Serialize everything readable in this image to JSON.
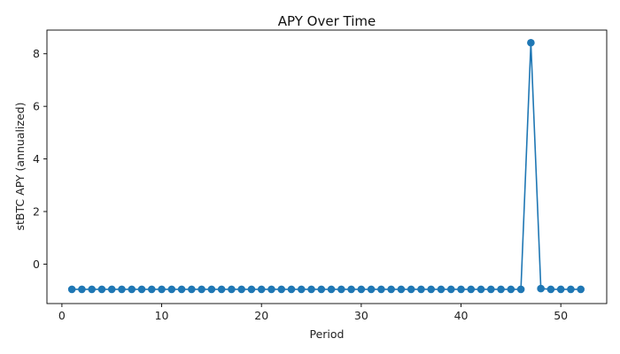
{
  "chart_data": {
    "type": "line",
    "title": "APY Over Time",
    "xlabel": "Period",
    "ylabel": "stBTC APY (annualized)",
    "xlim": [
      -1.5,
      54.6
    ],
    "ylim": [
      -1.5,
      8.9
    ],
    "xticks": [
      0,
      10,
      20,
      30,
      40,
      50
    ],
    "yticks": [
      0,
      2,
      4,
      6,
      8
    ],
    "grid": false,
    "legend": "none",
    "series": [
      {
        "color": "#1f77b4",
        "marker": "circle",
        "x": [
          1,
          2,
          3,
          4,
          5,
          6,
          7,
          8,
          9,
          10,
          11,
          12,
          13,
          14,
          15,
          16,
          17,
          18,
          19,
          20,
          21,
          22,
          23,
          24,
          25,
          26,
          27,
          28,
          29,
          30,
          31,
          32,
          33,
          34,
          35,
          36,
          37,
          38,
          39,
          40,
          41,
          42,
          43,
          44,
          45,
          46,
          47,
          48,
          49,
          50,
          51,
          52
        ],
        "y": [
          -0.96,
          -0.96,
          -0.96,
          -0.96,
          -0.96,
          -0.96,
          -0.96,
          -0.96,
          -0.96,
          -0.96,
          -0.96,
          -0.96,
          -0.96,
          -0.96,
          -0.96,
          -0.96,
          -0.96,
          -0.96,
          -0.96,
          -0.96,
          -0.96,
          -0.96,
          -0.96,
          -0.96,
          -0.96,
          -0.96,
          -0.96,
          -0.96,
          -0.96,
          -0.96,
          -0.96,
          -0.96,
          -0.96,
          -0.96,
          -0.96,
          -0.96,
          -0.96,
          -0.96,
          -0.96,
          -0.96,
          -0.96,
          -0.96,
          -0.96,
          -0.96,
          -0.96,
          -0.96,
          8.42,
          -0.93,
          -0.96,
          -0.96,
          -0.96,
          -0.96
        ]
      }
    ]
  }
}
